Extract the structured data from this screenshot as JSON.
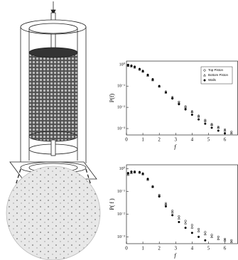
{
  "chart_data": [
    {
      "type": "scatter",
      "ylabel": "P(f)",
      "xlabel": "f",
      "xlim": [
        0,
        6.8
      ],
      "xticks": [
        0,
        1,
        2,
        3,
        4,
        5,
        6
      ],
      "ylim": [
        0.0005,
        1.5
      ],
      "log_y": true,
      "yticks": [
        {
          "value": 1,
          "label": "10⁰"
        },
        {
          "value": 0.1,
          "label": "10⁻¹"
        },
        {
          "value": 0.01,
          "label": "10⁻²"
        },
        {
          "value": 0.001,
          "label": "10⁻³"
        }
      ],
      "legend": "upper right",
      "x": [
        0.1,
        0.3,
        0.5,
        0.8,
        1,
        1.3,
        1.6,
        2,
        2.4,
        2.8,
        3.2,
        3.6,
        4,
        4.4,
        4.8,
        5.2,
        5.6,
        6,
        6.4
      ],
      "series": [
        {
          "name": "Top Piston",
          "marker": "circle-open",
          "color": "#000",
          "values": [
            0.95,
            0.9,
            0.8,
            0.62,
            0.5,
            0.33,
            0.2,
            0.1,
            0.055,
            0.03,
            0.018,
            0.011,
            0.0065,
            0.004,
            0.0025,
            0.0016,
            0.0012,
            0.0009,
            0.0007
          ]
        },
        {
          "name": "Bottom Piston",
          "marker": "triangle-open",
          "color": "#000",
          "values": [
            0.9,
            0.85,
            0.75,
            0.6,
            0.48,
            0.31,
            0.19,
            0.095,
            0.05,
            0.028,
            0.016,
            0.01,
            0.006,
            0.0037,
            0.0023,
            0.0015,
            0.0011,
            0.0008,
            0.0006
          ]
        },
        {
          "name": "Walls",
          "marker": "circle-filled",
          "color": "#000",
          "values": [
            1.0,
            0.92,
            0.82,
            0.64,
            0.52,
            0.34,
            0.21,
            0.1,
            0.05,
            0.026,
            0.014,
            0.008,
            0.0045,
            0.0027,
            0.0017,
            0.0011,
            0.0008,
            0.0006,
            null
          ]
        }
      ]
    },
    {
      "type": "scatter",
      "ylabel": "P( f )",
      "xlabel": "f",
      "xlim": [
        0,
        6.8
      ],
      "xticks": [
        0,
        1,
        2,
        3,
        4,
        5,
        6
      ],
      "ylim": [
        0.0005,
        1.5
      ],
      "log_y": true,
      "yticks": [
        {
          "value": 1,
          "label": "10⁰"
        },
        {
          "value": 0.1,
          "label": "10⁻¹"
        },
        {
          "value": 0.01,
          "label": "10⁻²"
        },
        {
          "value": 0.001,
          "label": "10⁻³"
        }
      ],
      "x": [
        0.1,
        0.3,
        0.5,
        0.8,
        1,
        1.3,
        1.6,
        2,
        2.4,
        2.8,
        3.2,
        3.6,
        4,
        4.4,
        4.8,
        5.2,
        5.6,
        6,
        6.4
      ],
      "series": [
        {
          "marker": "circle-open",
          "color": "#000",
          "values": [
            0.6,
            0.7,
            0.72,
            0.7,
            0.6,
            0.35,
            0.17,
            0.07,
            0.03,
            0.014,
            0.008,
            0.005,
            0.0033,
            0.0022,
            0.0016,
            0.0012,
            0.001,
            0.0008,
            0.0007
          ]
        },
        {
          "marker": "triangle-open",
          "color": "#000",
          "values": [
            0.55,
            0.65,
            0.7,
            0.68,
            0.58,
            0.33,
            0.16,
            0.065,
            0.027,
            0.012,
            0.0065,
            0.004,
            0.0026,
            0.0018,
            0.0013,
            0.001,
            0.0008,
            0.0007,
            0.0006
          ]
        },
        {
          "marker": "circle-filled",
          "color": "#000",
          "values": [
            0.65,
            0.75,
            0.75,
            0.72,
            0.62,
            0.36,
            0.16,
            0.06,
            0.022,
            0.009,
            0.0045,
            0.0025,
            0.0015,
            0.001,
            0.0007,
            null,
            null,
            null,
            null
          ]
        }
      ]
    }
  ]
}
